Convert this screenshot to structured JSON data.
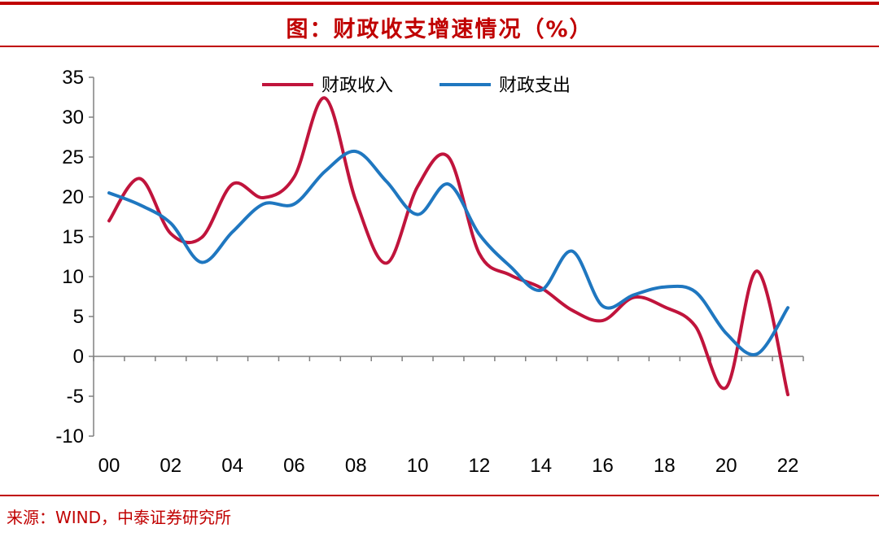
{
  "header": {
    "title": "图：财政收支增速情况（%）"
  },
  "footer": {
    "source": "来源：WIND，中泰证券研究所"
  },
  "colors": {
    "accent": "#c00000",
    "revenue": "#c0143c",
    "expenditure": "#1f77c0"
  },
  "chart_data": {
    "type": "line",
    "x": [
      2000,
      2001,
      2002,
      2003,
      2004,
      2005,
      2006,
      2007,
      2008,
      2009,
      2010,
      2011,
      2012,
      2013,
      2014,
      2015,
      2016,
      2017,
      2018,
      2019,
      2020,
      2021,
      2022
    ],
    "x_tick_labels": [
      "00",
      "02",
      "04",
      "06",
      "08",
      "10",
      "12",
      "14",
      "16",
      "18",
      "20",
      "22"
    ],
    "x_ticks": [
      2000,
      2002,
      2004,
      2006,
      2008,
      2010,
      2012,
      2014,
      2016,
      2018,
      2020,
      2022
    ],
    "ylim": [
      -10,
      35
    ],
    "y_ticks": [
      35,
      30,
      25,
      20,
      15,
      10,
      5,
      0,
      -5,
      -10
    ],
    "legend_position": "top-center",
    "series": [
      {
        "name": "财政收入",
        "color": "#c0143c",
        "values": [
          17.0,
          22.3,
          15.4,
          14.9,
          21.6,
          19.9,
          22.5,
          32.4,
          19.5,
          11.7,
          21.3,
          25.0,
          12.9,
          10.2,
          8.6,
          5.8,
          4.5,
          7.4,
          6.2,
          3.8,
          -3.9,
          10.7,
          -4.8
        ]
      },
      {
        "name": "财政支出",
        "color": "#1f77c0",
        "values": [
          20.5,
          19.0,
          16.7,
          11.8,
          15.6,
          19.1,
          19.1,
          23.2,
          25.7,
          21.9,
          17.8,
          21.6,
          15.3,
          11.3,
          8.3,
          13.2,
          6.3,
          7.7,
          8.7,
          8.1,
          2.9,
          0.3,
          6.1
        ]
      }
    ]
  }
}
